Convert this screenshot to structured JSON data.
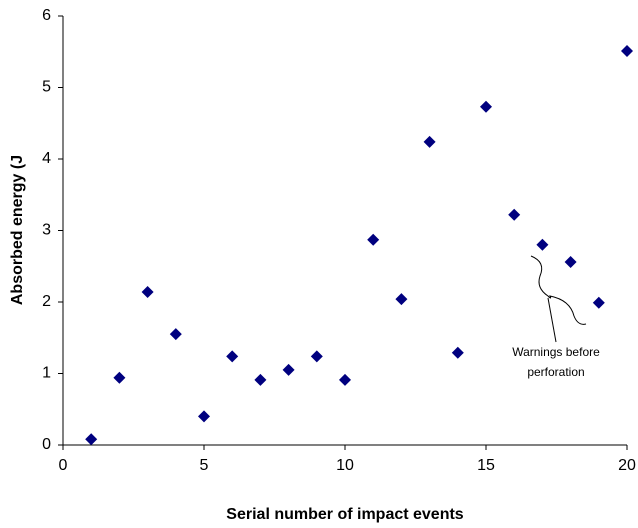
{
  "chart_data": {
    "type": "scatter",
    "x_label": "Serial number of impact events",
    "y_label": "Absorbed energy (J",
    "x": [
      1,
      2,
      3,
      4,
      5,
      6,
      7,
      8,
      9,
      10,
      11,
      12,
      13,
      14,
      15,
      16,
      17,
      18,
      19,
      20
    ],
    "values": [
      0.08,
      0.94,
      2.14,
      1.55,
      0.4,
      1.24,
      0.91,
      1.05,
      1.24,
      0.91,
      2.87,
      2.04,
      4.24,
      1.29,
      4.73,
      3.22,
      2.8,
      2.56,
      1.99,
      5.51
    ],
    "color": "#00007f",
    "xlim": [
      0,
      20
    ],
    "xticks": [
      0,
      5,
      10,
      15,
      20
    ],
    "ylim": [
      0,
      6
    ],
    "yticks": [
      0,
      1,
      2,
      3,
      4,
      5,
      6
    ],
    "grid": false,
    "annotation": [
      "Warnings before",
      "perforation"
    ]
  }
}
